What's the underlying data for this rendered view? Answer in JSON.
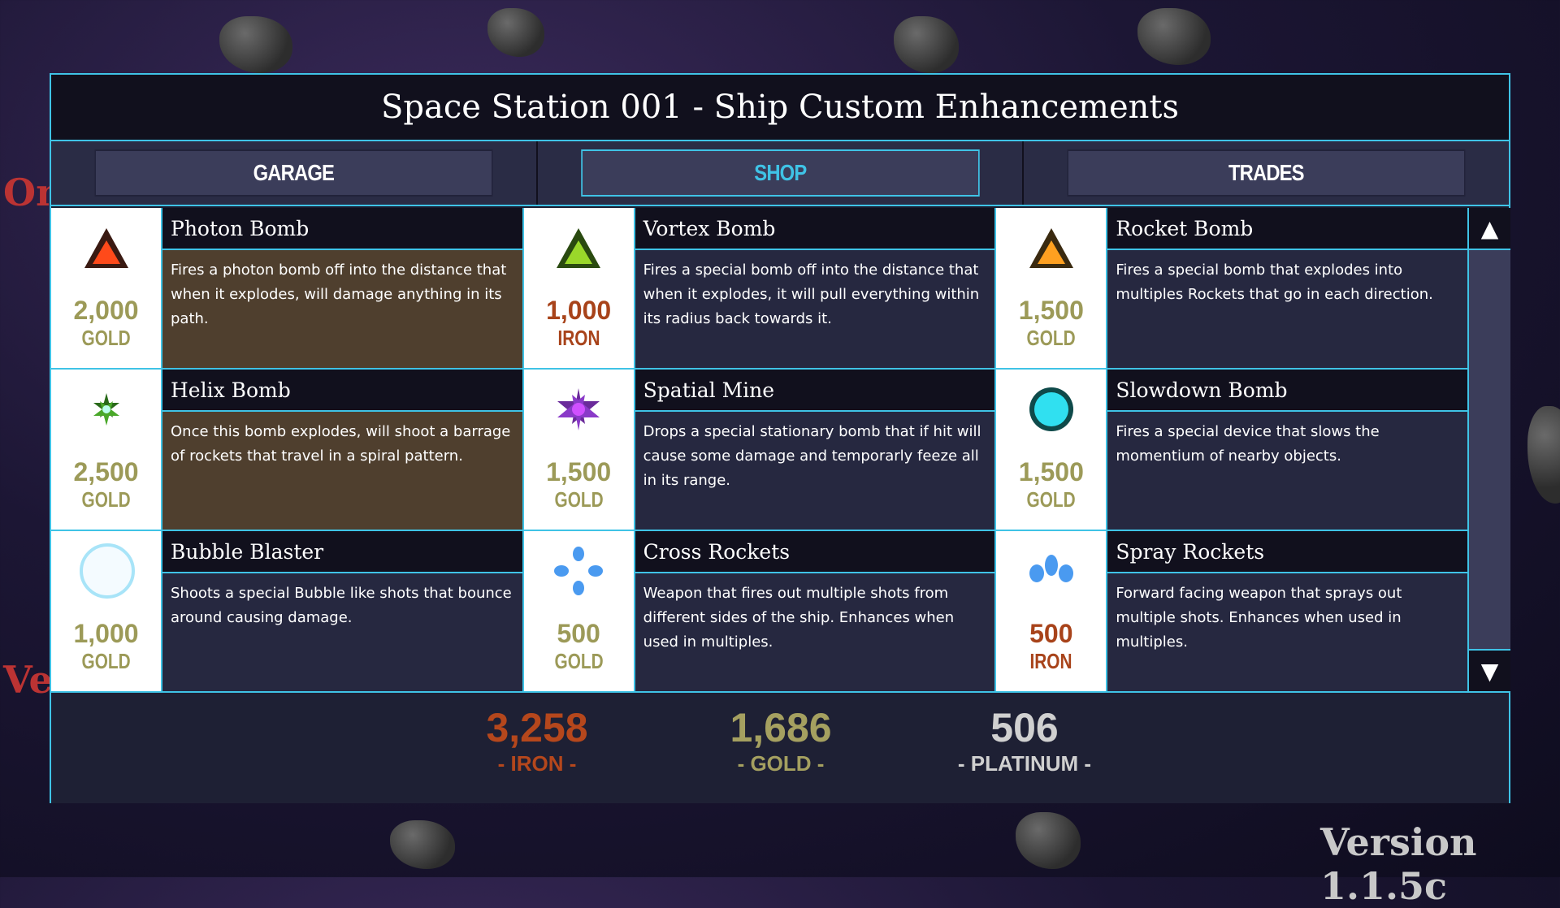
{
  "title": "Space Station 001 - Ship Custom Enhancements",
  "tabs": [
    {
      "label": "GARAGE",
      "active": false
    },
    {
      "label": "SHOP",
      "active": true
    },
    {
      "label": "TRADES",
      "active": false
    }
  ],
  "items": [
    {
      "name": "Photon Bomb",
      "price": "2,000",
      "currency": "GOLD",
      "icon": "red-triangle-bomb-icon",
      "desc": "Fires a photon bomb off into the distance that when it explodes, will damage anything in its path.",
      "highlight": true
    },
    {
      "name": "Vortex Bomb",
      "price": "1,000",
      "currency": "IRON",
      "icon": "green-triangle-bomb-icon",
      "desc": "Fires a special bomb off into the distance that when it explodes, it will pull everything within its radius back towards it.",
      "highlight": false
    },
    {
      "name": "Rocket Bomb",
      "price": "1,500",
      "currency": "GOLD",
      "icon": "orange-triangle-bomb-icon",
      "desc": "Fires a special bomb that explodes into multiples Rockets that go in each direction.",
      "highlight": false
    },
    {
      "name": "Helix Bomb",
      "price": "2,500",
      "currency": "GOLD",
      "icon": "green-star-bomb-icon",
      "desc": "Once this bomb explodes, will shoot a barrage of rockets that travel in a spiral pattern.",
      "highlight": true
    },
    {
      "name": "Spatial Mine",
      "price": "1,500",
      "currency": "GOLD",
      "icon": "purple-star-mine-icon",
      "desc": "Drops a special stationary bomb that if hit will cause some damage and temporarly feeze all in its range.",
      "highlight": false
    },
    {
      "name": "Slowdown Bomb",
      "price": "1,500",
      "currency": "GOLD",
      "icon": "cyan-orb-icon",
      "desc": "Fires a special device that slows the momentium of nearby objects.",
      "highlight": false
    },
    {
      "name": "Bubble Blaster",
      "price": "1,000",
      "currency": "GOLD",
      "icon": "bubble-icon",
      "desc": "Shoots a special Bubble like shots that bounce around causing damage.",
      "highlight": false
    },
    {
      "name": "Cross Rockets",
      "price": "500",
      "currency": "GOLD",
      "icon": "cross-shots-icon",
      "desc": "Weapon that fires out multiple shots from different sides of the ship. Enhances when used in multiples.",
      "highlight": false
    },
    {
      "name": "Spray Rockets",
      "price": "500",
      "currency": "IRON",
      "icon": "spray-shots-icon",
      "desc": "Forward facing weapon that sprays out multiple shots. Enhances when used in multiples.",
      "highlight": false
    }
  ],
  "resources": [
    {
      "value": "3,258",
      "label": "- IRON -",
      "color": "#b5471c"
    },
    {
      "value": "1,686",
      "label": "- GOLD -",
      "color": "#a5a060"
    },
    {
      "value": "506",
      "label": "- PLATINUM -",
      "color": "#d0d0d0"
    }
  ],
  "version": "Version 1.1.5c",
  "bg_text": [
    "On",
    "Ve"
  ],
  "colors": {
    "accent": "#3fc3e6",
    "gold": "#9c9a58",
    "iron": "#a8431a"
  }
}
